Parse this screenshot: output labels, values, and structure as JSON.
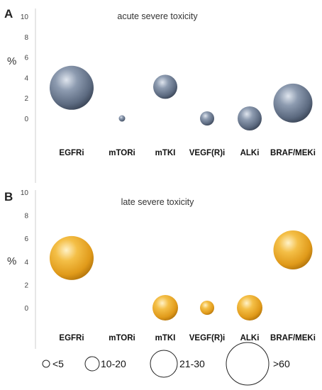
{
  "chart_data": [
    {
      "type": "bubble",
      "panel": "A",
      "title": "acute severe toxicity",
      "ylabel": "%",
      "ylim": [
        0,
        10
      ],
      "yticks": [
        "0",
        "2",
        "4",
        "6",
        "8",
        "10"
      ],
      "color": "#6b7a90",
      "categories": [
        "EGFRi",
        "mTORi",
        "mTKI",
        "VEGF(R)i",
        "ALKi",
        "BRAF/MEKi"
      ],
      "values": [
        3.0,
        0.0,
        3.1,
        0.0,
        0.0,
        1.5
      ],
      "size_class": [
        ">60",
        "<5",
        "21-30",
        "10-20",
        "21-30",
        ">60"
      ]
    },
    {
      "type": "bubble",
      "panel": "B",
      "title": "late severe toxicity",
      "ylabel": "%",
      "ylim": [
        0,
        10
      ],
      "yticks": [
        "0",
        "2",
        "4",
        "6",
        "8",
        "10"
      ],
      "color": "#e8a628",
      "categories": [
        "EGFRi",
        "mTORi",
        "mTKI",
        "VEGF(R)i",
        "ALKi",
        "BRAF/MEKi"
      ],
      "values": [
        4.3,
        null,
        0.0,
        0.0,
        0.0,
        5.0
      ],
      "size_class": [
        ">60",
        null,
        "21-30",
        "10-20",
        "21-30",
        ">60"
      ]
    }
  ],
  "legend": {
    "items": [
      {
        "label": "<5"
      },
      {
        "label": "10-20"
      },
      {
        "label": "21-30"
      },
      {
        "label": ">60"
      }
    ]
  }
}
